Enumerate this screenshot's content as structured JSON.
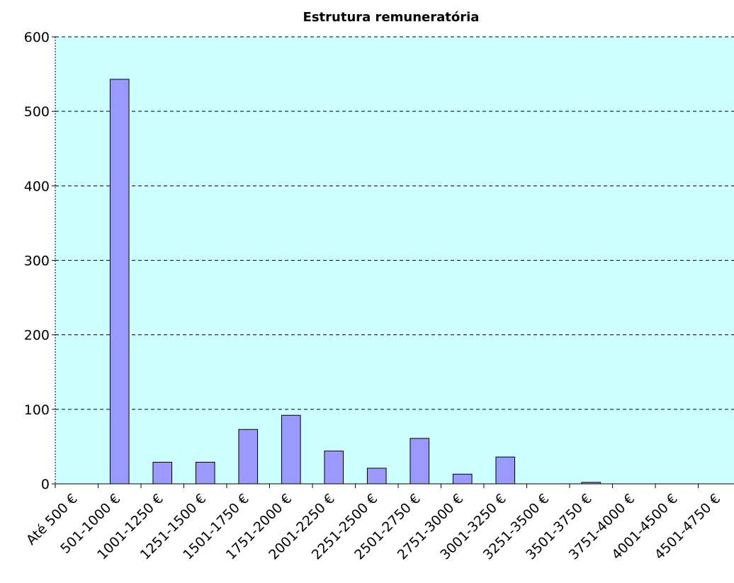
{
  "chart_data": {
    "type": "bar",
    "title": "Estrutura remuneratória",
    "categories": [
      "Até 500 €",
      "501-1000 €",
      "1001-1250 €",
      "1251-1500 €",
      "1501-1750 €",
      "1751-2000 €",
      "2001-2250 €",
      "2251-2500 €",
      "2501-2750 €",
      "2751-3000 €",
      "3001-3250 €",
      "3251-3500 €",
      "3501-3750 €",
      "3751-4000 €",
      "4001-4500 €",
      "4501-4750 €"
    ],
    "values": [
      0,
      543,
      29,
      29,
      73,
      92,
      44,
      21,
      61,
      13,
      36,
      0,
      2,
      0,
      0,
      0
    ],
    "color": "#9999ff",
    "background": "#ccffff",
    "ylim": [
      0,
      600
    ],
    "yticks": [
      0,
      100,
      200,
      300,
      400,
      500,
      600
    ],
    "grid": true
  }
}
